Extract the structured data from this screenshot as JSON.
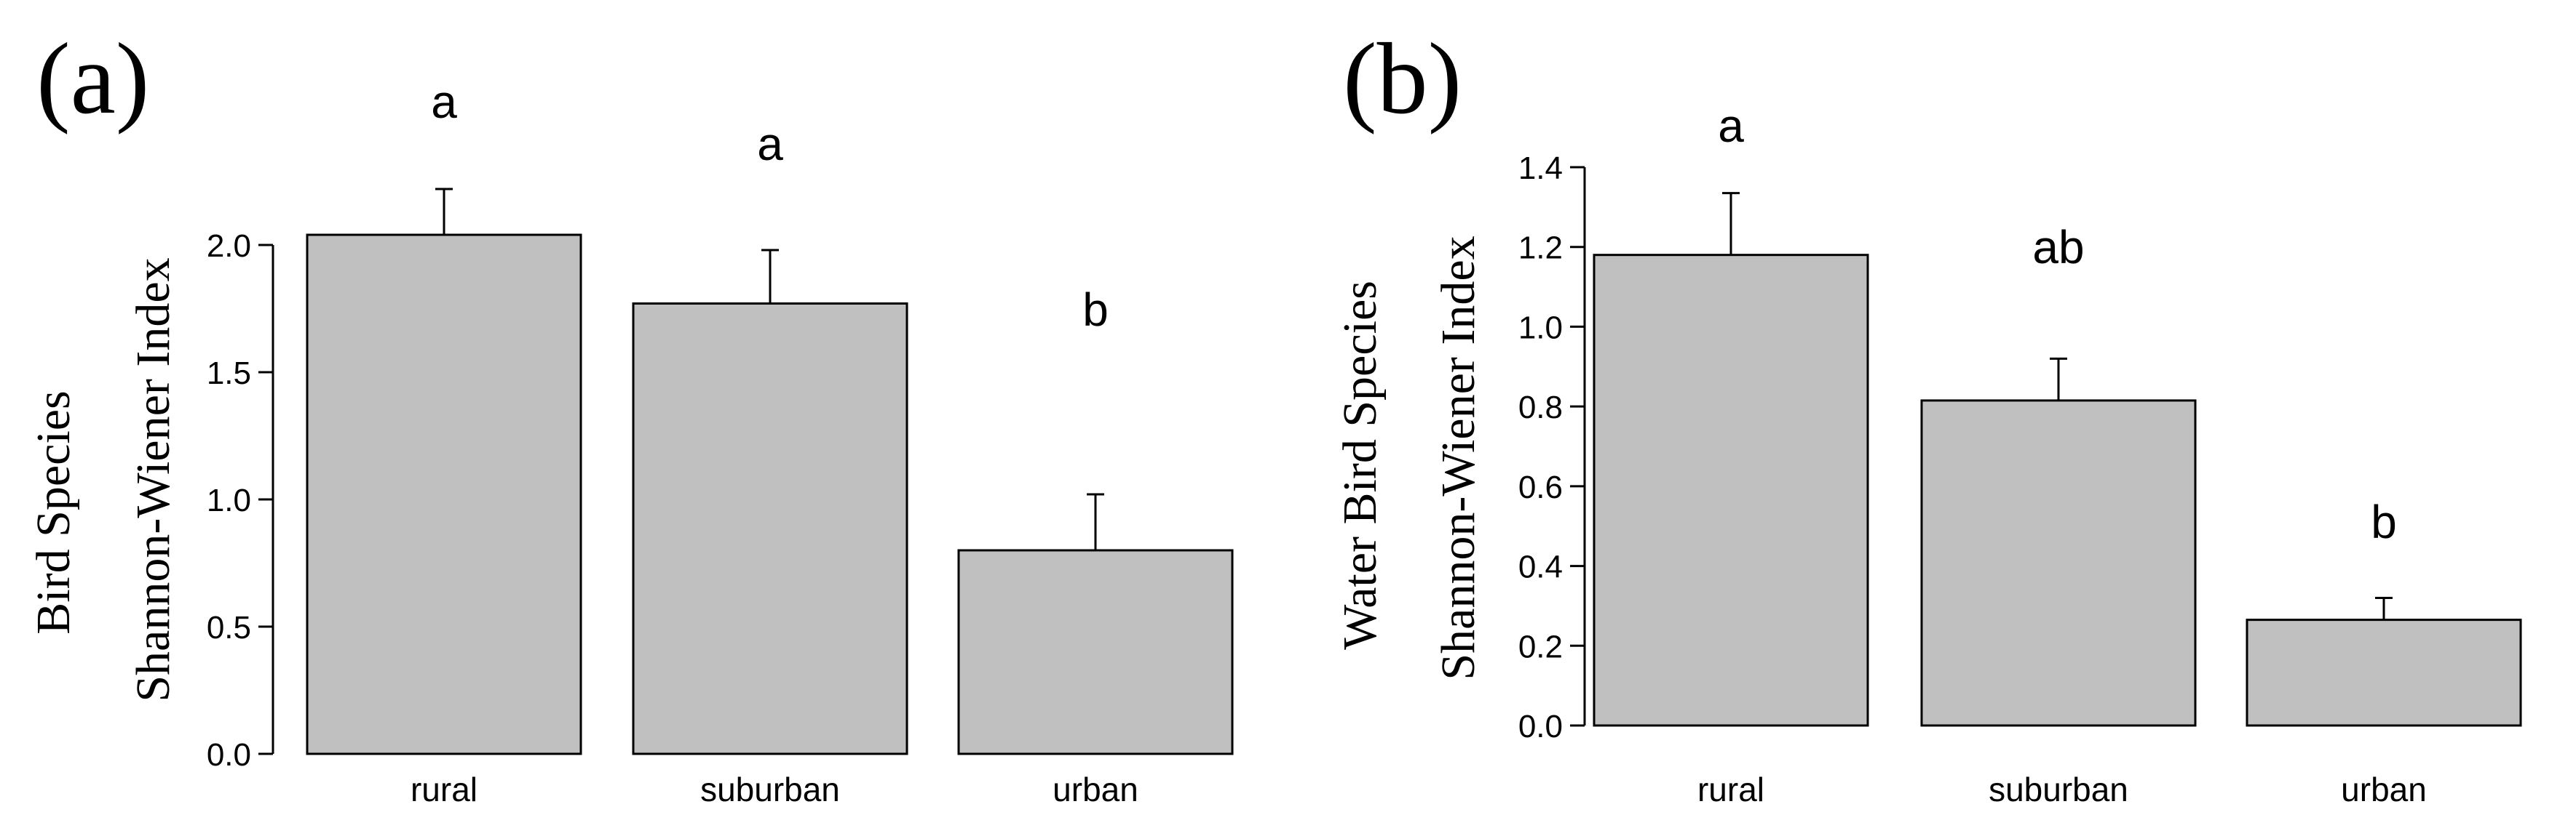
{
  "chart_data": [
    {
      "type": "bar",
      "panel_label": "(a)",
      "ylabel_lines": [
        "Bird Species",
        "Shannon-Wiener Index"
      ],
      "categories": [
        "rural",
        "suburban",
        "urban"
      ],
      "values": [
        2.04,
        1.77,
        0.8
      ],
      "errors": [
        0.18,
        0.21,
        0.22
      ],
      "significance": [
        "a",
        "a",
        "b"
      ],
      "yticks": [
        0.0,
        0.5,
        1.0,
        1.5,
        2.0
      ],
      "ytick_labels": [
        "0.0",
        "0.5",
        "1.0",
        "1.5",
        "2.0"
      ],
      "ylim": [
        0,
        2.0
      ],
      "bar_color": "#c0c0c0"
    },
    {
      "type": "bar",
      "panel_label": "(b)",
      "ylabel_lines": [
        "Water Bird Species",
        "Shannon-Wiener Index"
      ],
      "categories": [
        "rural",
        "suburban",
        "urban"
      ],
      "values": [
        1.18,
        0.815,
        0.265
      ],
      "errors": [
        0.155,
        0.105,
        0.055
      ],
      "significance": [
        "a",
        "ab",
        "b"
      ],
      "yticks": [
        0.0,
        0.2,
        0.4,
        0.6,
        0.8,
        1.0,
        1.2,
        1.4
      ],
      "ytick_labels": [
        "0.0",
        "0.2",
        "0.4",
        "0.6",
        "0.8",
        "1.0",
        "1.2",
        "1.4"
      ],
      "ylim": [
        0,
        1.4
      ],
      "bar_color": "#c0c0c0"
    }
  ]
}
